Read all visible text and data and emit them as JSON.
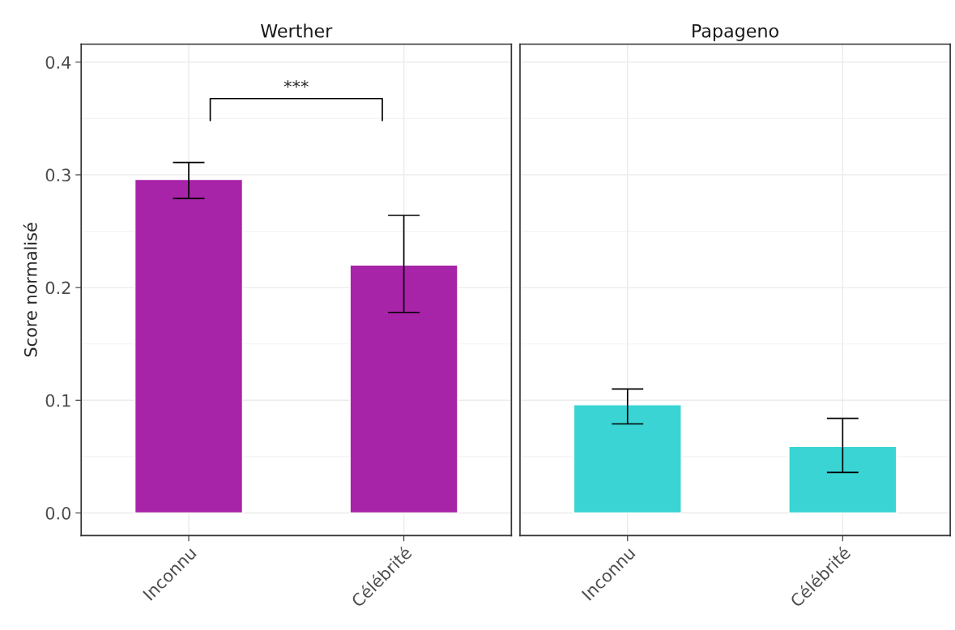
{
  "chart_data": [
    {
      "type": "bar",
      "title": "Werther",
      "ylabel": "Score normalisé",
      "categories": [
        "Inconnu",
        "Célébrité"
      ],
      "values": [
        0.296,
        0.22
      ],
      "errors": [
        [
          0.279,
          0.311
        ],
        [
          0.178,
          0.264
        ]
      ],
      "color": "#a723a7",
      "ylim": [
        -0.02,
        0.416
      ],
      "yticks": [
        {
          "value": 0,
          "label": "0.0"
        },
        0.1,
        0.2,
        0.3,
        0.4
      ],
      "grid": true,
      "annotations": [
        "***"
      ]
    },
    {
      "type": "bar",
      "title": "Papageno",
      "categories": [
        "Inconnu",
        "Célébrité"
      ],
      "values": [
        0.096,
        0.059
      ],
      "errors": [
        [
          0.079,
          0.11
        ],
        [
          0.036,
          0.084
        ]
      ],
      "color": "#3ad4d4",
      "ylim": [
        -0.02,
        0.416
      ],
      "yticks": [
        {
          "value": 0,
          "label": null
        },
        {
          "value": 0.1,
          "label": null
        },
        {
          "value": 0.2,
          "label": null
        },
        {
          "value": 0.3,
          "label": null
        },
        {
          "value": 0.4,
          "label": null
        }
      ],
      "grid": true,
      "tick_labels": "x"
    }
  ]
}
